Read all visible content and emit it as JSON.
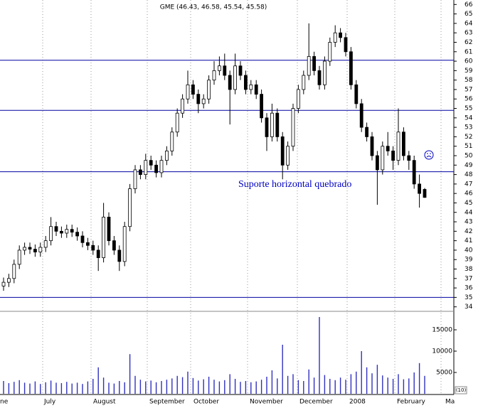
{
  "chart_data": {
    "type": "candlestick",
    "title": "GME (46.43, 46.58, 45.54, 45.58)",
    "annotation": "Suporte horizontal quebrado",
    "x_labels": [
      "ne",
      "July",
      "August",
      "September",
      "October",
      "November",
      "December",
      "2008",
      "February",
      "Ma"
    ],
    "open": [
      36.2,
      36.6,
      37.0,
      38.5,
      40.0,
      40.3,
      40.1,
      39.8,
      40.3,
      41.0,
      42.5,
      42.0,
      41.8,
      42.2,
      41.9,
      41.5,
      40.8,
      40.5,
      40.0,
      39.2,
      43.5,
      41.0,
      40.0,
      38.8,
      42.5,
      46.5,
      48.5,
      48.0,
      49.5,
      49.0,
      48.2,
      49.5,
      50.5,
      52.5,
      54.5,
      56.0,
      57.5,
      56.5,
      55.5,
      56.0,
      58.0,
      59.0,
      59.5,
      58.5,
      57.0,
      59.5,
      58.5,
      57.0,
      57.5,
      56.5,
      54.0,
      52.0,
      54.5,
      52.0,
      49.0,
      51.0,
      55.0,
      57.0,
      58.5,
      60.5,
      59.0,
      57.5,
      60.0,
      62.0,
      63.0,
      62.5,
      61.0,
      57.5,
      55.5,
      53.0,
      52.0,
      50.0,
      48.5,
      51.0,
      50.5,
      49.5,
      52.5,
      50.0,
      49.5,
      47.0,
      46.43
    ],
    "high": [
      37.1,
      37.5,
      39.0,
      40.5,
      40.8,
      40.8,
      40.6,
      40.8,
      41.5,
      43.5,
      43.0,
      42.5,
      42.7,
      42.7,
      42.4,
      42.0,
      41.3,
      41.0,
      40.5,
      45.0,
      44.0,
      41.5,
      40.5,
      43.0,
      47.0,
      49.0,
      49.0,
      50.2,
      50.0,
      49.5,
      50.0,
      51.0,
      53.0,
      55.0,
      56.5,
      59.0,
      58.0,
      57.0,
      56.5,
      58.5,
      60.0,
      60.5,
      60.8,
      59.0,
      60.8,
      60.0,
      59.0,
      58.0,
      58.0,
      57.0,
      54.5,
      55.5,
      55.0,
      52.5,
      51.5,
      55.5,
      57.5,
      59.0,
      64.0,
      61.0,
      59.5,
      60.5,
      62.5,
      63.8,
      63.5,
      63.0,
      61.5,
      58.0,
      56.0,
      53.5,
      52.5,
      50.5,
      51.5,
      52.5,
      51.0,
      55.0,
      53.0,
      50.5,
      50.0,
      48.0,
      46.58
    ],
    "low": [
      35.7,
      36.1,
      36.5,
      38.0,
      39.5,
      39.6,
      39.3,
      39.3,
      39.8,
      40.5,
      41.5,
      41.3,
      41.3,
      41.4,
      41.0,
      40.3,
      40.0,
      39.5,
      37.8,
      38.7,
      40.5,
      39.5,
      37.8,
      38.3,
      42.0,
      46.0,
      47.5,
      47.5,
      48.5,
      47.7,
      47.7,
      49.0,
      50.0,
      52.0,
      54.0,
      55.5,
      56.0,
      54.5,
      55.0,
      55.5,
      57.5,
      58.5,
      58.0,
      53.3,
      56.5,
      58.0,
      56.5,
      56.5,
      56.0,
      53.5,
      50.5,
      51.5,
      51.5,
      47.5,
      48.5,
      50.5,
      54.5,
      56.5,
      58.0,
      58.5,
      57.0,
      57.0,
      59.5,
      61.5,
      62.0,
      60.5,
      57.0,
      55.0,
      52.5,
      51.5,
      49.5,
      44.8,
      48.0,
      50.0,
      48.5,
      49.0,
      49.5,
      48.5,
      46.5,
      44.5,
      45.54
    ],
    "close": [
      36.6,
      37.0,
      38.5,
      40.0,
      40.3,
      40.1,
      39.8,
      40.3,
      41.0,
      42.5,
      42.0,
      41.8,
      42.2,
      41.9,
      41.5,
      40.8,
      40.5,
      40.0,
      39.2,
      43.5,
      41.0,
      40.0,
      38.8,
      42.5,
      46.5,
      48.5,
      48.0,
      49.5,
      49.0,
      48.2,
      49.5,
      50.5,
      52.5,
      54.5,
      56.0,
      57.5,
      56.5,
      55.5,
      56.0,
      58.0,
      59.0,
      59.5,
      58.5,
      57.0,
      59.5,
      58.5,
      57.0,
      57.5,
      56.5,
      54.0,
      52.0,
      54.5,
      52.0,
      49.0,
      51.0,
      55.0,
      57.0,
      58.5,
      60.5,
      59.0,
      57.5,
      60.0,
      62.0,
      63.0,
      62.5,
      61.0,
      57.5,
      55.5,
      53.0,
      52.0,
      50.0,
      48.5,
      51.0,
      50.5,
      49.5,
      52.5,
      50.0,
      49.5,
      47.0,
      46.0,
      45.58
    ],
    "volume": [
      3000,
      2500,
      2800,
      3200,
      2600,
      2400,
      2900,
      2300,
      2700,
      3100,
      2600,
      2500,
      2800,
      2400,
      2600,
      2300,
      2900,
      3500,
      6200,
      3800,
      2600,
      2400,
      3000,
      2700,
      9300,
      4200,
      3300,
      2900,
      3100,
      2700,
      3000,
      3300,
      3600,
      4200,
      3900,
      5200,
      3700,
      3100,
      3400,
      4000,
      3300,
      2900,
      3200,
      4600,
      3500,
      2800,
      3000,
      2700,
      2900,
      3300,
      4000,
      5500,
      3600,
      11500,
      4200,
      4600,
      3200,
      3000,
      5700,
      3800,
      18000,
      4400,
      3500,
      3200,
      3800,
      3300,
      4600,
      5200,
      10000,
      6200,
      4800,
      6800,
      4300,
      3800,
      3500,
      4600,
      3400,
      3600,
      5000,
      7200,
      4200
    ],
    "ylim": [
      33.6,
      66.4
    ],
    "yticks": [
      34,
      35,
      36,
      37,
      38,
      39,
      40,
      41,
      42,
      43,
      44,
      45,
      46,
      47,
      48,
      49,
      50,
      51,
      52,
      53,
      54,
      55,
      56,
      57,
      58,
      59,
      60,
      61,
      62,
      63,
      64,
      65,
      66
    ],
    "hlines": [
      60.1,
      54.8,
      48.3,
      35
    ],
    "volume_ylim": [
      0,
      19000
    ],
    "volume_yticks": [
      5000,
      10000,
      15000
    ],
    "volume_label": "(10)",
    "line_color": "#0000a0",
    "volume_color": "#3030c0"
  }
}
